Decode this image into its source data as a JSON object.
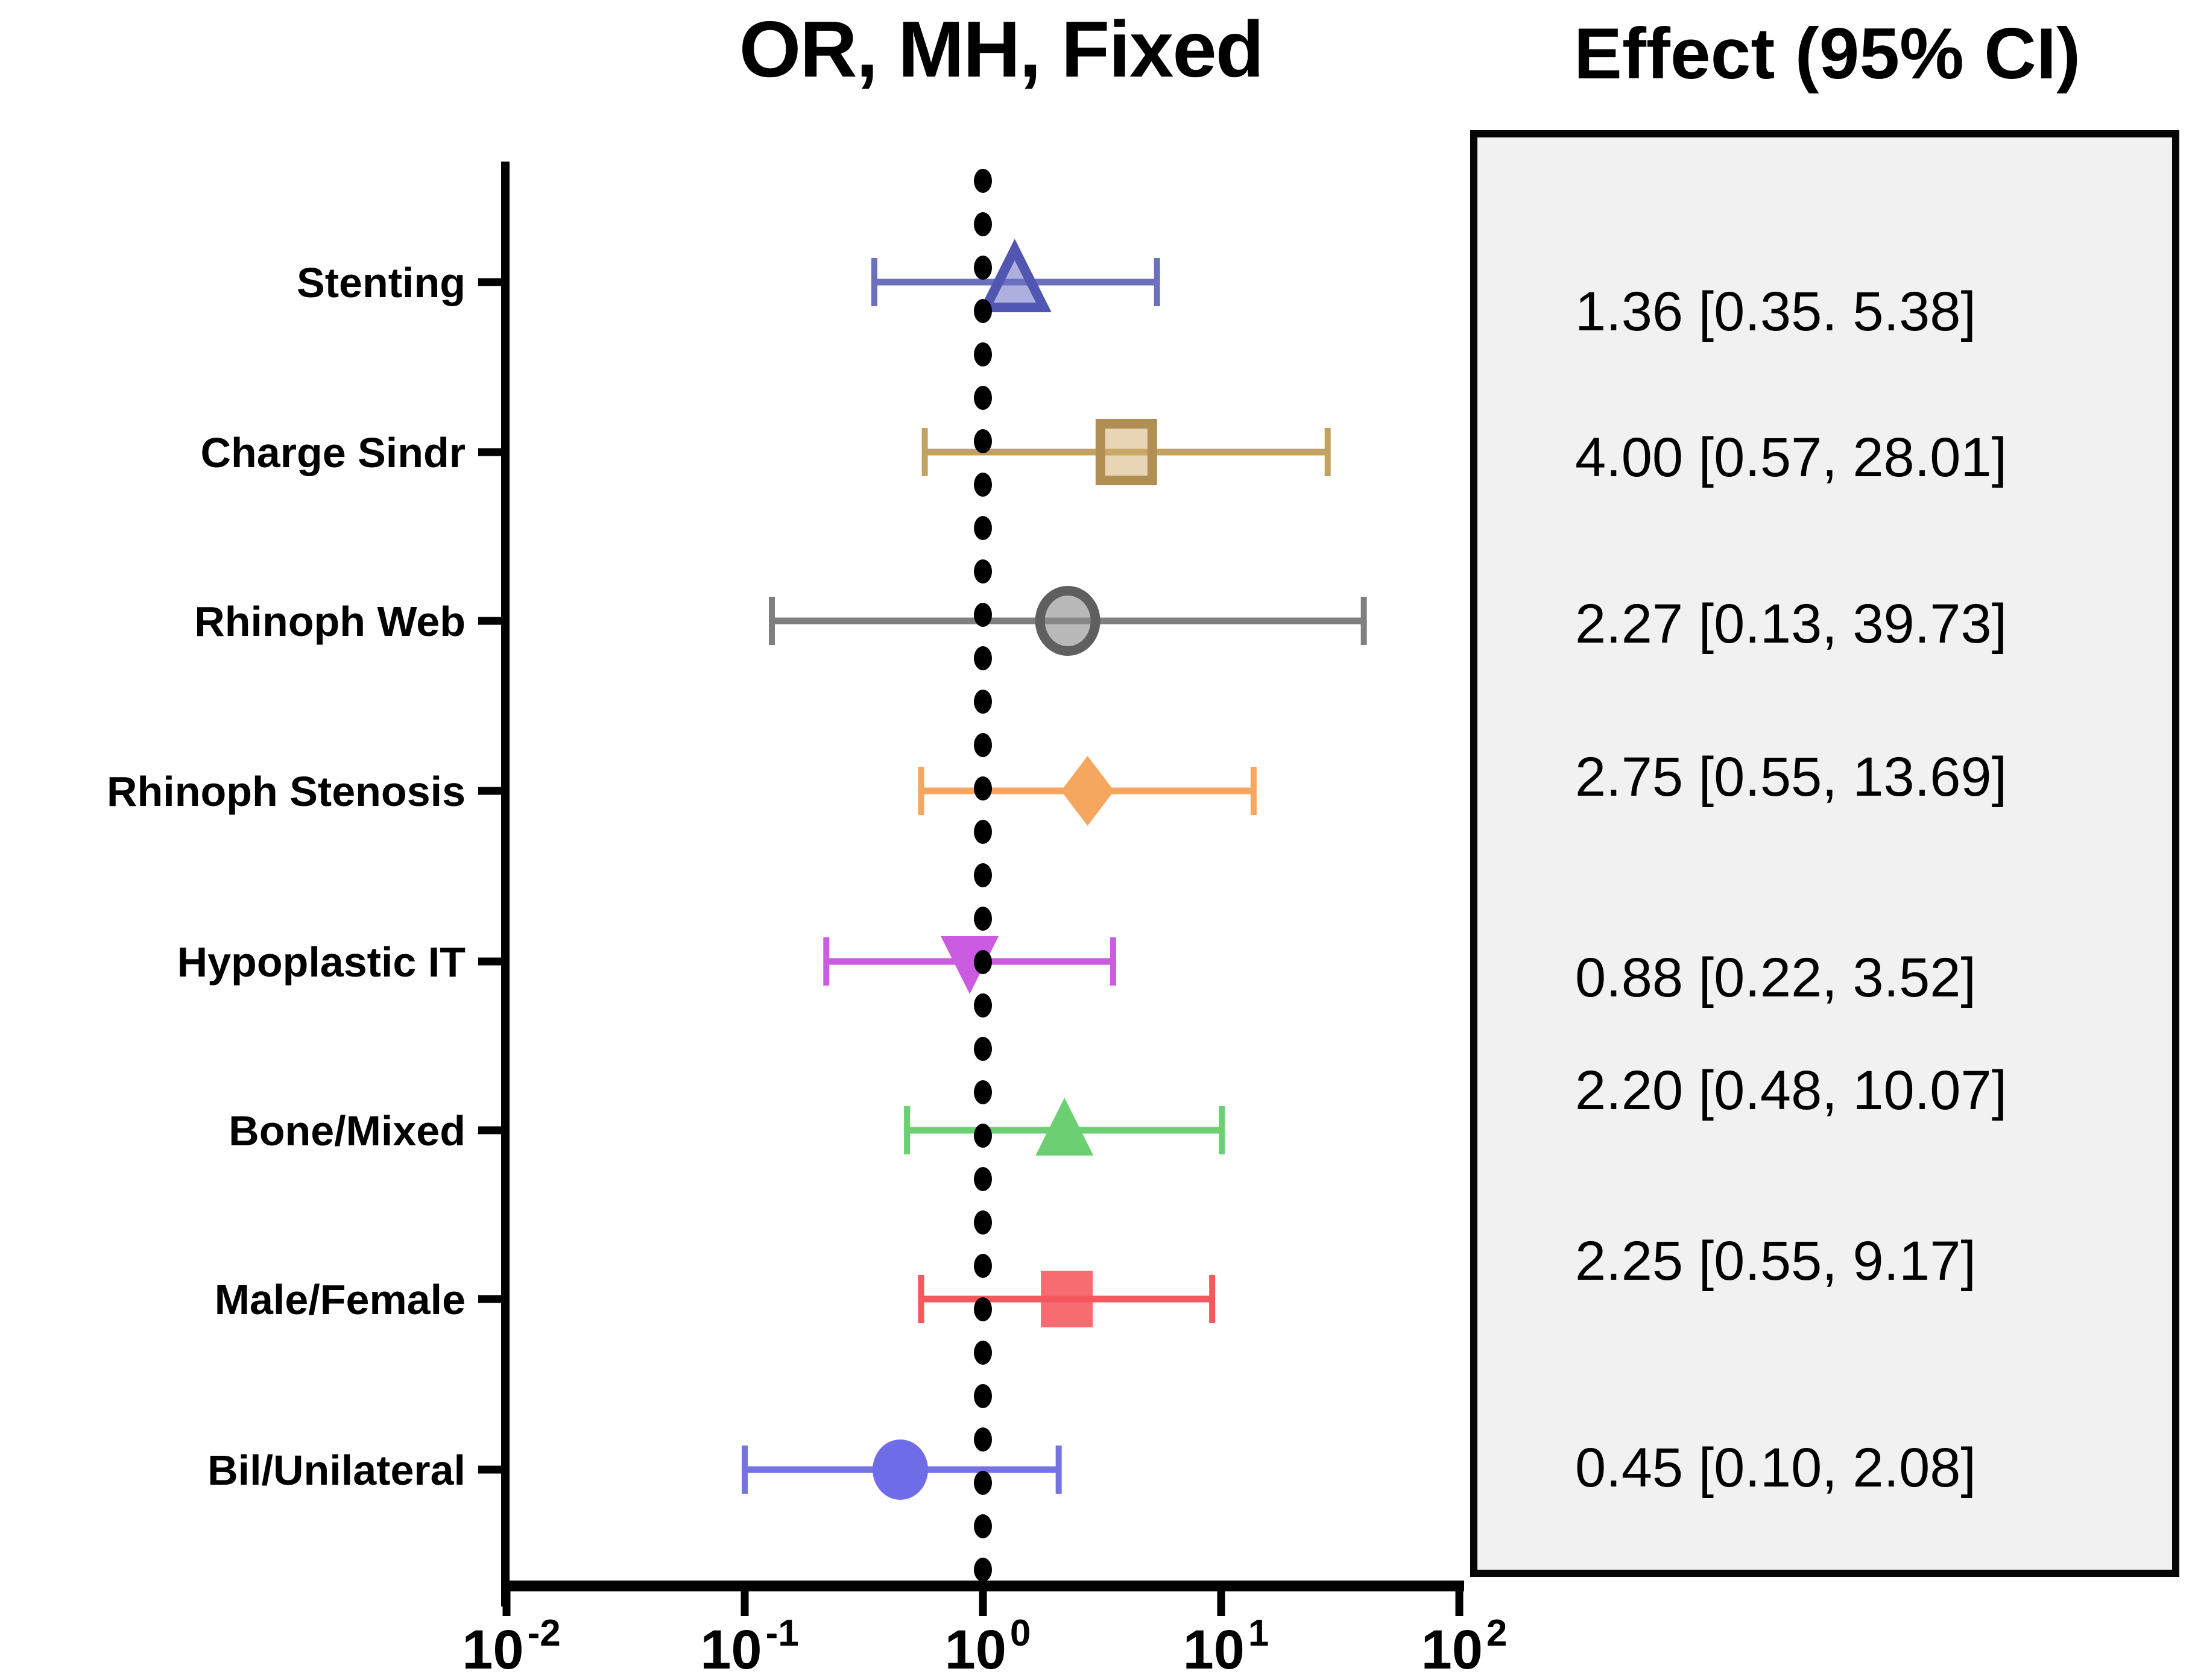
{
  "title": "OR, MH, Fixed",
  "effect_header": "Effect (95% CI)",
  "chart_data": {
    "type": "forest",
    "x_scale": "log10",
    "x_range": [
      0.01,
      100
    ],
    "reference_line": 1.0,
    "grid": false,
    "x_ticks": [
      {
        "base": "10",
        "exp": "-2",
        "value": 0.01
      },
      {
        "base": "10",
        "exp": "-1",
        "value": 0.1
      },
      {
        "base": "10",
        "exp": "0",
        "value": 1
      },
      {
        "base": "10",
        "exp": "1",
        "value": 10
      },
      {
        "base": "10",
        "exp": "2",
        "value": 100
      }
    ],
    "rows": [
      {
        "label": "Stenting",
        "effect": 1.36,
        "ci_low": 0.35,
        "ci_high": 5.38,
        "effect_label": "1.36 [0.35. 5.38]",
        "marker": "triangle-up",
        "style": "outlined",
        "fill": "rgba(106,110,196,0.55)",
        "stroke": "#5156b0",
        "bar_color": "#6d70bd"
      },
      {
        "label": "Charge Sindr",
        "effect": 4.0,
        "ci_low": 0.57,
        "ci_high": 28.01,
        "effect_label": "4.00 [0.57, 28.01]",
        "marker": "square",
        "style": "outlined",
        "fill": "rgba(207,172,110,0.5)",
        "stroke": "#b18e54",
        "bar_color": "#c2a261"
      },
      {
        "label": "Rhinoph Web",
        "effect": 2.27,
        "ci_low": 0.13,
        "ci_high": 39.73,
        "effect_label": "2.27 [0.13, 39.73]",
        "marker": "circle",
        "style": "outlined",
        "fill": "rgba(138,138,138,0.6)",
        "stroke": "#5f5f5f",
        "bar_color": "#7f7f7f"
      },
      {
        "label": "Rhinoph Stenosis",
        "effect": 2.75,
        "ci_low": 0.55,
        "ci_high": 13.69,
        "effect_label": "2.75 [0.55, 13.69]",
        "marker": "diamond",
        "style": "filled",
        "fill": "#f6a75f",
        "stroke": "none",
        "bar_color": "#f6a75f"
      },
      {
        "label": "Hypoplastic IT",
        "effect": 0.88,
        "ci_low": 0.22,
        "ci_high": 3.52,
        "effect_label": "0.88 [0.22, 3.52]",
        "marker": "triangle-down",
        "style": "filled",
        "fill": "#cb5ce2",
        "stroke": "none",
        "bar_color": "#cb5ce2"
      },
      {
        "label": "Bone/Mixed",
        "effect": 2.2,
        "ci_low": 0.48,
        "ci_high": 10.07,
        "effect_label": "2.20 [0.48, 10.07]",
        "marker": "triangle-up",
        "style": "filled",
        "fill": "#6ccf72",
        "stroke": "none",
        "bar_color": "#6ccf72"
      },
      {
        "label": "Male/Female",
        "effect": 2.25,
        "ci_low": 0.55,
        "ci_high": 9.17,
        "effect_label": "2.25 [0.55, 9.17]",
        "marker": "square",
        "style": "filled",
        "fill": "rgba(245,88,92,0.88)",
        "stroke": "none",
        "bar_color": "#f5595e"
      },
      {
        "label": "Bil/Unilateral",
        "effect": 0.45,
        "ci_low": 0.1,
        "ci_high": 2.08,
        "effect_label": "0.45 [0.10, 2.08]",
        "marker": "circle",
        "style": "filled",
        "fill": "#6f6ce8",
        "stroke": "none",
        "bar_color": "#7573e2"
      }
    ]
  },
  "colors": {
    "axis": "#000000",
    "reference_dots": "#000000",
    "panel_fill": "#f1f1f1",
    "panel_border": "#060606"
  }
}
